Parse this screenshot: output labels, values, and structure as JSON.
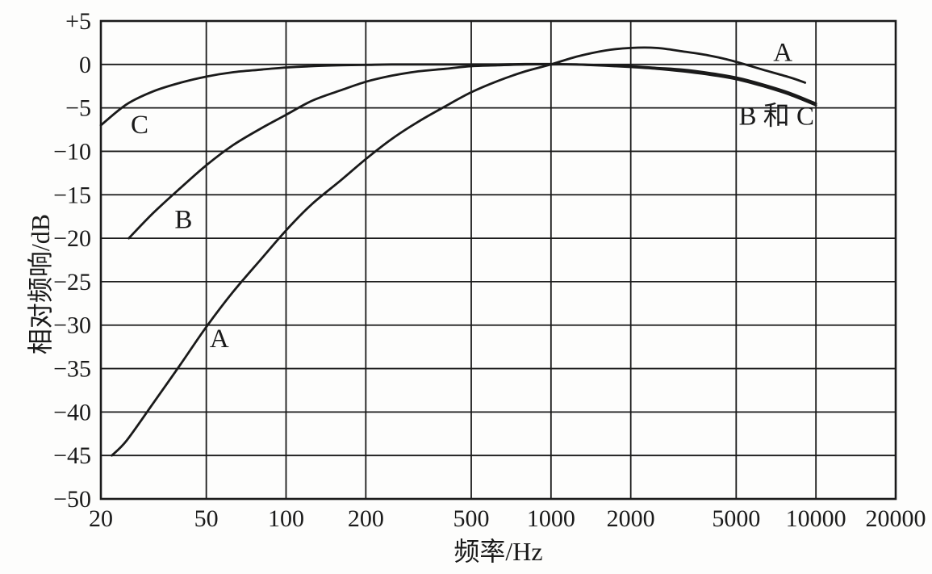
{
  "figure": {
    "ink_color": "#1a1a1a",
    "background_color": "#fdfdfc"
  },
  "chart_data": {
    "type": "line",
    "title": "",
    "xlabel": "频率/Hz",
    "ylabel": "相对频响/dB",
    "x_scale": "log",
    "xlim": [
      20,
      20000
    ],
    "ylim": [
      -50,
      5
    ],
    "grid": true,
    "legend_position": "none",
    "x_ticks": [
      20,
      50,
      100,
      200,
      500,
      1000,
      2000,
      5000,
      10000,
      20000
    ],
    "x_tick_labels": [
      "20",
      "50",
      "100",
      "200",
      "500",
      "1000",
      "2000",
      "5000",
      "10000",
      "20000"
    ],
    "y_ticks": [
      5,
      0,
      -5,
      -10,
      -15,
      -20,
      -25,
      -30,
      -35,
      -40,
      -45,
      -50
    ],
    "y_tick_labels": [
      "+5",
      "0",
      "−5",
      "−10",
      "−15",
      "−20",
      "−25",
      "−30",
      "−35",
      "−40",
      "−45",
      "−50"
    ],
    "series": [
      {
        "name": "A",
        "points": [
          [
            22,
            -45
          ],
          [
            25,
            -43.3
          ],
          [
            31.5,
            -39
          ],
          [
            40,
            -34.5
          ],
          [
            50,
            -30.2
          ],
          [
            63,
            -26.2
          ],
          [
            80,
            -22.5
          ],
          [
            100,
            -19.1
          ],
          [
            125,
            -16.1
          ],
          [
            160,
            -13.4
          ],
          [
            200,
            -10.9
          ],
          [
            250,
            -8.6
          ],
          [
            315,
            -6.6
          ],
          [
            400,
            -4.8
          ],
          [
            500,
            -3.2
          ],
          [
            630,
            -1.9
          ],
          [
            800,
            -0.8
          ],
          [
            1000,
            0
          ],
          [
            1250,
            0.9
          ],
          [
            1600,
            1.6
          ],
          [
            2000,
            1.9
          ],
          [
            2500,
            1.9
          ],
          [
            3150,
            1.5
          ],
          [
            4000,
            1.0
          ],
          [
            5000,
            0.3
          ],
          [
            6300,
            -0.6
          ],
          [
            8000,
            -1.5
          ],
          [
            9100,
            -2.1
          ]
        ]
      },
      {
        "name": "B",
        "points": [
          [
            25.5,
            -20
          ],
          [
            31.5,
            -17.1
          ],
          [
            40,
            -14.2
          ],
          [
            50,
            -11.6
          ],
          [
            63,
            -9.3
          ],
          [
            80,
            -7.4
          ],
          [
            100,
            -5.8
          ],
          [
            125,
            -4.2
          ],
          [
            160,
            -3.0
          ],
          [
            200,
            -2.0
          ],
          [
            250,
            -1.3
          ],
          [
            315,
            -0.8
          ],
          [
            400,
            -0.5
          ],
          [
            500,
            -0.2
          ],
          [
            630,
            -0.1
          ],
          [
            800,
            0
          ],
          [
            1000,
            0
          ],
          [
            1250,
            0
          ],
          [
            1600,
            -0.1
          ],
          [
            2000,
            -0.2
          ],
          [
            2500,
            -0.4
          ],
          [
            3150,
            -0.6
          ],
          [
            4000,
            -1.0
          ],
          [
            5000,
            -1.5
          ],
          [
            6300,
            -2.3
          ],
          [
            8000,
            -3.3
          ],
          [
            10000,
            -4.5
          ]
        ]
      },
      {
        "name": "C",
        "points": [
          [
            20,
            -7.0
          ],
          [
            25,
            -4.6
          ],
          [
            31.5,
            -3.1
          ],
          [
            40,
            -2.1
          ],
          [
            50,
            -1.4
          ],
          [
            63,
            -0.9
          ],
          [
            80,
            -0.6
          ],
          [
            100,
            -0.35
          ],
          [
            125,
            -0.2
          ],
          [
            160,
            -0.1
          ],
          [
            200,
            -0.05
          ],
          [
            250,
            0
          ],
          [
            315,
            0
          ],
          [
            400,
            0
          ],
          [
            500,
            0
          ],
          [
            630,
            0
          ],
          [
            800,
            0.05
          ],
          [
            1000,
            0.05
          ],
          [
            1250,
            0
          ],
          [
            1600,
            -0.15
          ],
          [
            2000,
            -0.3
          ],
          [
            2500,
            -0.5
          ],
          [
            3150,
            -0.8
          ],
          [
            4000,
            -1.2
          ],
          [
            5000,
            -1.7
          ],
          [
            6300,
            -2.5
          ],
          [
            8000,
            -3.5
          ],
          [
            10000,
            -4.7
          ]
        ]
      }
    ],
    "annotations": [
      {
        "text": "C",
        "f": 28,
        "db": -6.9
      },
      {
        "text": "B",
        "f": 41,
        "db": -17.8
      },
      {
        "text": "A",
        "f": 56,
        "db": -31.5
      },
      {
        "text": "A",
        "f": 7500,
        "db": 1.4
      },
      {
        "text": "B 和 C",
        "f": 7100,
        "db": -5.9
      }
    ]
  }
}
